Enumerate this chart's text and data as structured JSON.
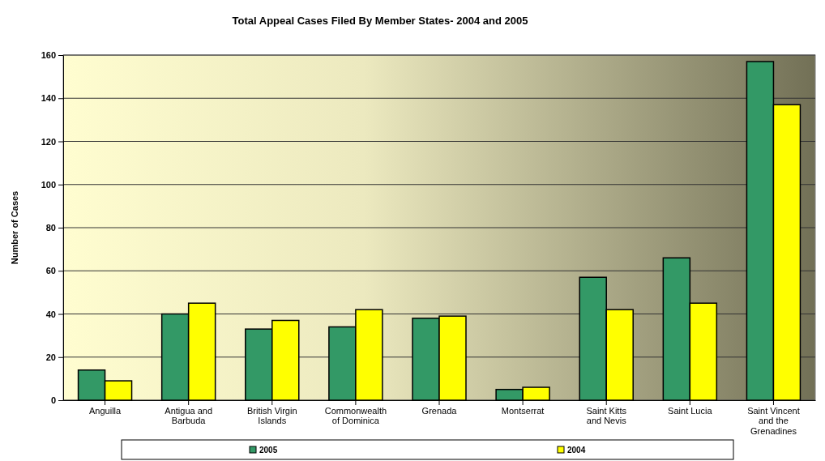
{
  "chart_data": {
    "type": "bar",
    "title": "Total Appeal Cases Filed By Member States- 2004 and 2005",
    "ylabel": "Number of Cases",
    "categories": [
      "Anguilla",
      "Antigua and Barbuda",
      "British Virgin Islands",
      "Commonwealth of Dominica",
      "Grenada",
      "Montserrat",
      "Saint Kitts and Nevis",
      "Saint Lucia",
      "Saint Vincent and the Grenadines"
    ],
    "series": [
      {
        "name": "2005",
        "color": "#339966",
        "values": [
          14,
          40,
          33,
          34,
          38,
          5,
          57,
          66,
          157
        ]
      },
      {
        "name": "2004",
        "color": "#ffff00",
        "values": [
          9,
          45,
          37,
          42,
          39,
          6,
          42,
          45,
          137
        ]
      }
    ],
    "ylim": [
      0,
      160
    ],
    "yticks": [
      0,
      20,
      40,
      60,
      80,
      100,
      120,
      140,
      160
    ],
    "grid": "y",
    "legend": "bottom"
  }
}
